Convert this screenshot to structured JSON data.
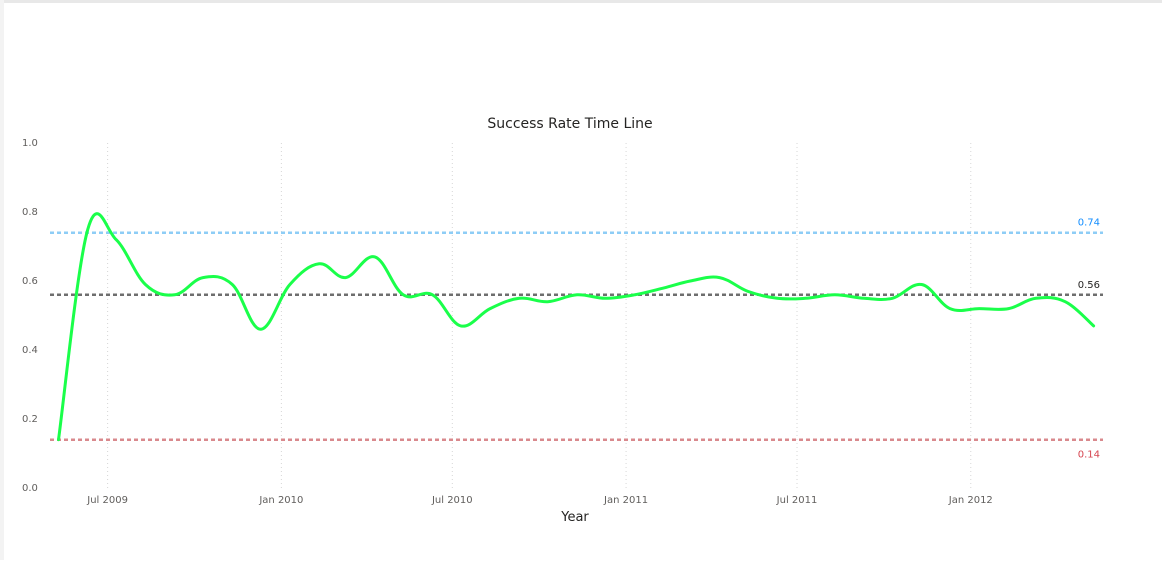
{
  "chart_data": {
    "type": "line",
    "title": "Success Rate Time Line",
    "xlabel": "Year",
    "ylabel": "",
    "ylim": [
      0,
      1
    ],
    "xlim": [
      "2009-05-01",
      "2012-05-20"
    ],
    "y_ticks": [
      "0.0",
      "0.2",
      "0.4",
      "0.6",
      "0.8",
      "1.0"
    ],
    "x_ticks": [
      {
        "label": "Jul 2009",
        "date": "2009-07-01"
      },
      {
        "label": "Jan 2010",
        "date": "2010-01-01"
      },
      {
        "label": "Jul 2010",
        "date": "2010-07-01"
      },
      {
        "label": "Jan 2011",
        "date": "2011-01-01"
      },
      {
        "label": "Jul 2011",
        "date": "2011-07-01"
      },
      {
        "label": "Jan 2012",
        "date": "2012-01-01"
      }
    ],
    "grid": "vertical dotted",
    "series": [
      {
        "color": "#1aff4a",
        "points": [
          {
            "x": "2009-05-10",
            "y": 0.14
          },
          {
            "x": "2009-06-10",
            "y": 0.75
          },
          {
            "x": "2009-07-10",
            "y": 0.72
          },
          {
            "x": "2009-08-10",
            "y": 0.59
          },
          {
            "x": "2009-09-10",
            "y": 0.56
          },
          {
            "x": "2009-10-10",
            "y": 0.61
          },
          {
            "x": "2009-11-10",
            "y": 0.59
          },
          {
            "x": "2009-12-10",
            "y": 0.46
          },
          {
            "x": "2010-01-10",
            "y": 0.59
          },
          {
            "x": "2010-02-10",
            "y": 0.65
          },
          {
            "x": "2010-03-10",
            "y": 0.61
          },
          {
            "x": "2010-04-10",
            "y": 0.67
          },
          {
            "x": "2010-05-10",
            "y": 0.56
          },
          {
            "x": "2010-06-10",
            "y": 0.56
          },
          {
            "x": "2010-07-10",
            "y": 0.47
          },
          {
            "x": "2010-08-10",
            "y": 0.52
          },
          {
            "x": "2010-09-10",
            "y": 0.55
          },
          {
            "x": "2010-10-10",
            "y": 0.54
          },
          {
            "x": "2010-11-10",
            "y": 0.56
          },
          {
            "x": "2010-12-10",
            "y": 0.55
          },
          {
            "x": "2011-01-10",
            "y": 0.56
          },
          {
            "x": "2011-02-10",
            "y": 0.58
          },
          {
            "x": "2011-03-10",
            "y": 0.6
          },
          {
            "x": "2011-04-10",
            "y": 0.61
          },
          {
            "x": "2011-05-10",
            "y": 0.57
          },
          {
            "x": "2011-06-10",
            "y": 0.55
          },
          {
            "x": "2011-07-10",
            "y": 0.55
          },
          {
            "x": "2011-08-10",
            "y": 0.56
          },
          {
            "x": "2011-09-10",
            "y": 0.55
          },
          {
            "x": "2011-10-10",
            "y": 0.55
          },
          {
            "x": "2011-11-10",
            "y": 0.59
          },
          {
            "x": "2011-12-10",
            "y": 0.52
          },
          {
            "x": "2012-01-10",
            "y": 0.52
          },
          {
            "x": "2012-02-10",
            "y": 0.52
          },
          {
            "x": "2012-03-10",
            "y": 0.55
          },
          {
            "x": "2012-04-10",
            "y": 0.54
          },
          {
            "x": "2012-05-10",
            "y": 0.47
          }
        ]
      }
    ],
    "reference_lines": [
      {
        "label": "0.74",
        "value": 0.74,
        "color": "#8ecdf6",
        "label_color": "#118dff"
      },
      {
        "label": "0.56",
        "value": 0.56,
        "color": "#6e6e6e",
        "label_color": "#252423"
      },
      {
        "label": "0.14",
        "value": 0.14,
        "color": "#d9898d",
        "label_color": "#d64550"
      }
    ]
  }
}
